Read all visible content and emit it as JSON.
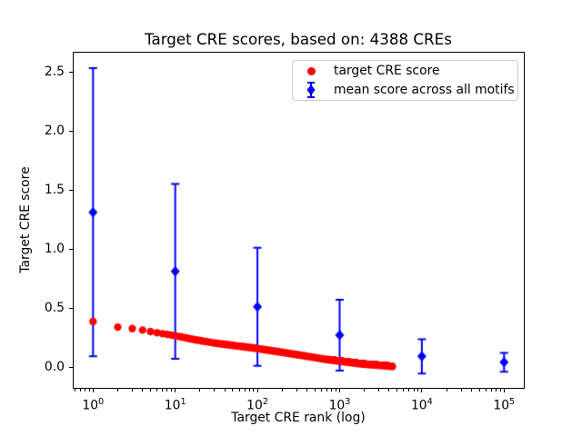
{
  "chart_data": {
    "type": "scatter",
    "title": "Target CRE scores, based on: 4388 CREs",
    "xlabel": "Target CRE rank (log)",
    "ylabel": "Target CRE score",
    "xscale": "log",
    "grid": false,
    "legend_position": "upper right",
    "xlim": [
      0.562,
      177828
    ],
    "ylim": [
      -0.18,
      2.67
    ],
    "x_tick_base": "10",
    "x_tick_exponents": [
      0,
      1,
      2,
      3,
      4,
      5
    ],
    "y_tick_labels": [
      "0.0",
      "0.5",
      "1.0",
      "1.5",
      "2.0",
      "2.5"
    ],
    "series": [
      {
        "name": "target CRE score",
        "type": "scatter",
        "marker": "circle",
        "color": "#ff0000",
        "n_points": 4388,
        "curve_anchors": [
          [
            1,
            0.385
          ],
          [
            2,
            0.338
          ],
          [
            3,
            0.325
          ],
          [
            4,
            0.312
          ],
          [
            6,
            0.29
          ],
          [
            10,
            0.265
          ],
          [
            17,
            0.232
          ],
          [
            32,
            0.2
          ],
          [
            93,
            0.159
          ],
          [
            184,
            0.128
          ],
          [
            400,
            0.091
          ],
          [
            716,
            0.062
          ],
          [
            1875,
            0.025
          ],
          [
            3160,
            0.013
          ],
          [
            4388,
            0.004
          ]
        ]
      },
      {
        "name": "mean score across all motifs",
        "type": "errorbar",
        "marker": "diamond",
        "color": "#0000ff",
        "x": [
          1,
          10,
          100,
          1000,
          10000,
          100000
        ],
        "y": [
          1.31,
          0.81,
          0.51,
          0.27,
          0.09,
          0.04
        ],
        "yerr": [
          1.22,
          0.74,
          0.5,
          0.3,
          0.145,
          0.08
        ]
      }
    ]
  },
  "colors": {
    "red": "#ff0000",
    "blue": "#0000ff",
    "legend_border": "#cccccc",
    "text": "#000000"
  }
}
